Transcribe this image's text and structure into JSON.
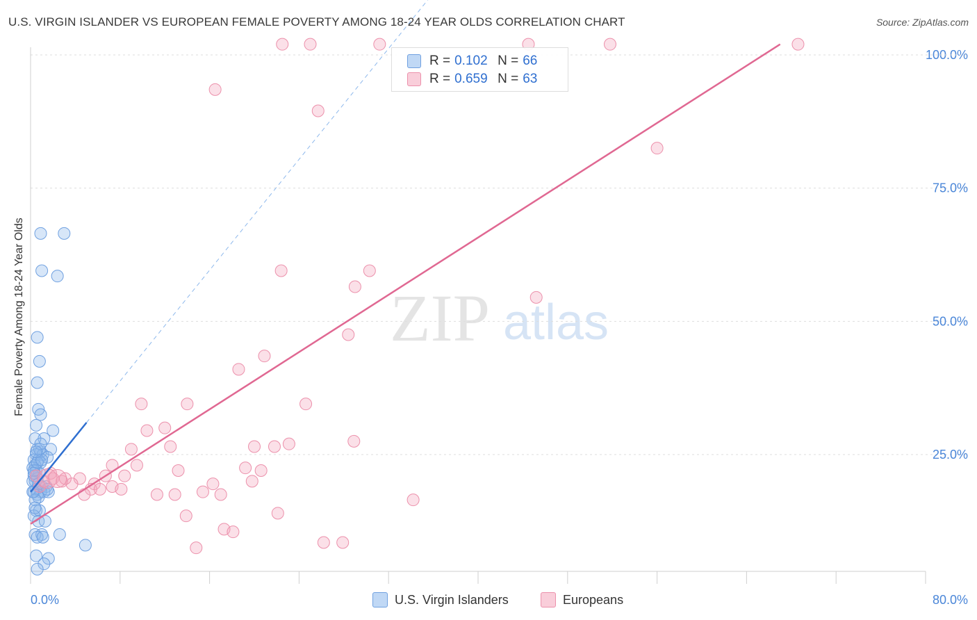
{
  "chart_data": {
    "type": "scatter",
    "title": "U.S. VIRGIN ISLANDER VS EUROPEAN FEMALE POVERTY AMONG 18-24 YEAR OLDS CORRELATION CHART",
    "source": "Source: ZipAtlas.com",
    "ylabel": "Female Poverty Among 18-24 Year Olds",
    "xlim": [
      0,
      80
    ],
    "ylim": [
      0,
      104
    ],
    "y_ticks": [
      {
        "value": 25,
        "label": "25.0%"
      },
      {
        "value": 50,
        "label": "50.0%"
      },
      {
        "value": 75,
        "label": "75.0%"
      },
      {
        "value": 100,
        "label": "100.0%"
      }
    ],
    "x_tick_labels": {
      "min": "0.0%",
      "max": "80.0%"
    },
    "x_minor_ticks": [
      0,
      8,
      16,
      24,
      32,
      40,
      48,
      56,
      64,
      72,
      80
    ],
    "watermark": {
      "zip": "ZIP",
      "atlas": "atlas"
    },
    "legend_stats": [
      {
        "r_label": "R =",
        "r_value": "0.102",
        "n_label": "N =",
        "n_value": "66"
      },
      {
        "r_label": "R =",
        "r_value": "0.659",
        "n_label": "N =",
        "n_value": "63"
      }
    ],
    "series": [
      {
        "name": "U.S. Virgin Islanders",
        "color": "#8db8ec",
        "fill": "rgba(141,184,236,0.35)",
        "trend": {
          "x0": 0,
          "y0": 18,
          "x1": 5,
          "y1": 31,
          "extend_to_x": 45,
          "line_color": "#2f6fd0"
        },
        "points": [
          [
            0.9,
            66.5
          ],
          [
            3.0,
            66.5
          ],
          [
            1.0,
            59.5
          ],
          [
            2.4,
            58.5
          ],
          [
            0.6,
            47
          ],
          [
            0.8,
            42.5
          ],
          [
            0.6,
            38.5
          ],
          [
            0.7,
            33.5
          ],
          [
            0.9,
            32.5
          ],
          [
            2.0,
            29.5
          ],
          [
            0.5,
            30.5
          ],
          [
            1.2,
            28
          ],
          [
            0.4,
            28
          ],
          [
            0.6,
            26
          ],
          [
            1.8,
            26
          ],
          [
            0.9,
            25.5
          ],
          [
            0.5,
            25
          ],
          [
            1.1,
            25
          ],
          [
            1.5,
            24.5
          ],
          [
            0.3,
            24
          ],
          [
            0.7,
            24
          ],
          [
            0.9,
            23.5
          ],
          [
            0.4,
            23
          ],
          [
            0.2,
            22.5
          ],
          [
            0.5,
            22
          ],
          [
            0.8,
            21.5
          ],
          [
            0.3,
            21
          ],
          [
            0.6,
            20.5
          ],
          [
            0.4,
            20
          ],
          [
            1.0,
            19
          ],
          [
            1.4,
            19
          ],
          [
            0.5,
            18.5
          ],
          [
            1.2,
            18
          ],
          [
            0.9,
            18
          ],
          [
            0.3,
            18
          ],
          [
            1.6,
            18
          ],
          [
            0.6,
            17.5
          ],
          [
            0.7,
            17
          ],
          [
            0.4,
            16.5
          ],
          [
            0.5,
            14.5
          ],
          [
            0.8,
            14.5
          ],
          [
            0.3,
            13.5
          ],
          [
            0.7,
            12.5
          ],
          [
            1.3,
            12.5
          ],
          [
            0.4,
            10
          ],
          [
            1.0,
            10
          ],
          [
            0.6,
            9.5
          ],
          [
            2.6,
            10
          ],
          [
            1.1,
            9.5
          ],
          [
            0.5,
            6
          ],
          [
            1.6,
            5.5
          ],
          [
            4.9,
            8
          ],
          [
            1.2,
            4.5
          ],
          [
            0.6,
            3.5
          ],
          [
            0.2,
            20
          ],
          [
            0.3,
            22
          ],
          [
            0.6,
            23.5
          ],
          [
            0.8,
            26
          ],
          [
            1.0,
            24
          ],
          [
            0.2,
            18
          ],
          [
            0.4,
            15
          ],
          [
            0.9,
            27
          ],
          [
            1.5,
            18.5
          ],
          [
            0.7,
            19.5
          ],
          [
            0.3,
            21.5
          ],
          [
            0.5,
            25.5
          ]
        ]
      },
      {
        "name": "Europeans",
        "color": "#f4a6bc",
        "fill": "rgba(244,166,188,0.35)",
        "trend": {
          "x0": 0,
          "y0": 12,
          "x1": 67,
          "y1": 102,
          "line_color": "#e06892"
        },
        "points": [
          [
            22.5,
            102
          ],
          [
            25.0,
            102
          ],
          [
            31.2,
            102
          ],
          [
            44.5,
            102
          ],
          [
            51.8,
            102
          ],
          [
            68.6,
            102
          ],
          [
            16.5,
            93.5
          ],
          [
            25.7,
            89.5
          ],
          [
            56.0,
            82.5
          ],
          [
            22.4,
            59.5
          ],
          [
            30.3,
            59.5
          ],
          [
            29.0,
            56.5
          ],
          [
            45.2,
            54.5
          ],
          [
            28.4,
            47.5
          ],
          [
            20.9,
            43.5
          ],
          [
            18.6,
            41
          ],
          [
            9.9,
            34.5
          ],
          [
            14.0,
            34.5
          ],
          [
            24.6,
            34.5
          ],
          [
            12.0,
            30.0
          ],
          [
            10.4,
            29.5
          ],
          [
            28.9,
            27.5
          ],
          [
            12.5,
            26.5
          ],
          [
            20.0,
            26.5
          ],
          [
            21.8,
            26.5
          ],
          [
            23.1,
            27.0
          ],
          [
            9.0,
            26.0
          ],
          [
            7.3,
            23.0
          ],
          [
            9.5,
            23.0
          ],
          [
            19.2,
            22.5
          ],
          [
            20.6,
            22.0
          ],
          [
            13.2,
            22.0
          ],
          [
            6.7,
            21.0
          ],
          [
            8.4,
            21.0
          ],
          [
            2.0,
            20.5
          ],
          [
            2.8,
            20.0
          ],
          [
            4.4,
            20.5
          ],
          [
            5.7,
            19.5
          ],
          [
            7.3,
            19.0
          ],
          [
            16.3,
            19.5
          ],
          [
            19.8,
            20.0
          ],
          [
            1.2,
            20.0
          ],
          [
            3.7,
            19.5
          ],
          [
            0.8,
            19.0
          ],
          [
            5.4,
            18.5
          ],
          [
            6.2,
            18.5
          ],
          [
            8.1,
            18.5
          ],
          [
            15.4,
            18.0
          ],
          [
            17.0,
            17.5
          ],
          [
            11.3,
            17.5
          ],
          [
            12.9,
            17.5
          ],
          [
            4.8,
            17.5
          ],
          [
            34.2,
            16.5
          ],
          [
            22.1,
            14.0
          ],
          [
            13.9,
            13.5
          ],
          [
            17.3,
            11.0
          ],
          [
            18.1,
            10.5
          ],
          [
            26.2,
            8.5
          ],
          [
            27.9,
            8.5
          ],
          [
            14.8,
            7.5
          ],
          [
            1.8,
            21.5
          ],
          [
            3.1,
            20.5
          ],
          [
            0.5,
            21.0
          ]
        ]
      }
    ]
  }
}
